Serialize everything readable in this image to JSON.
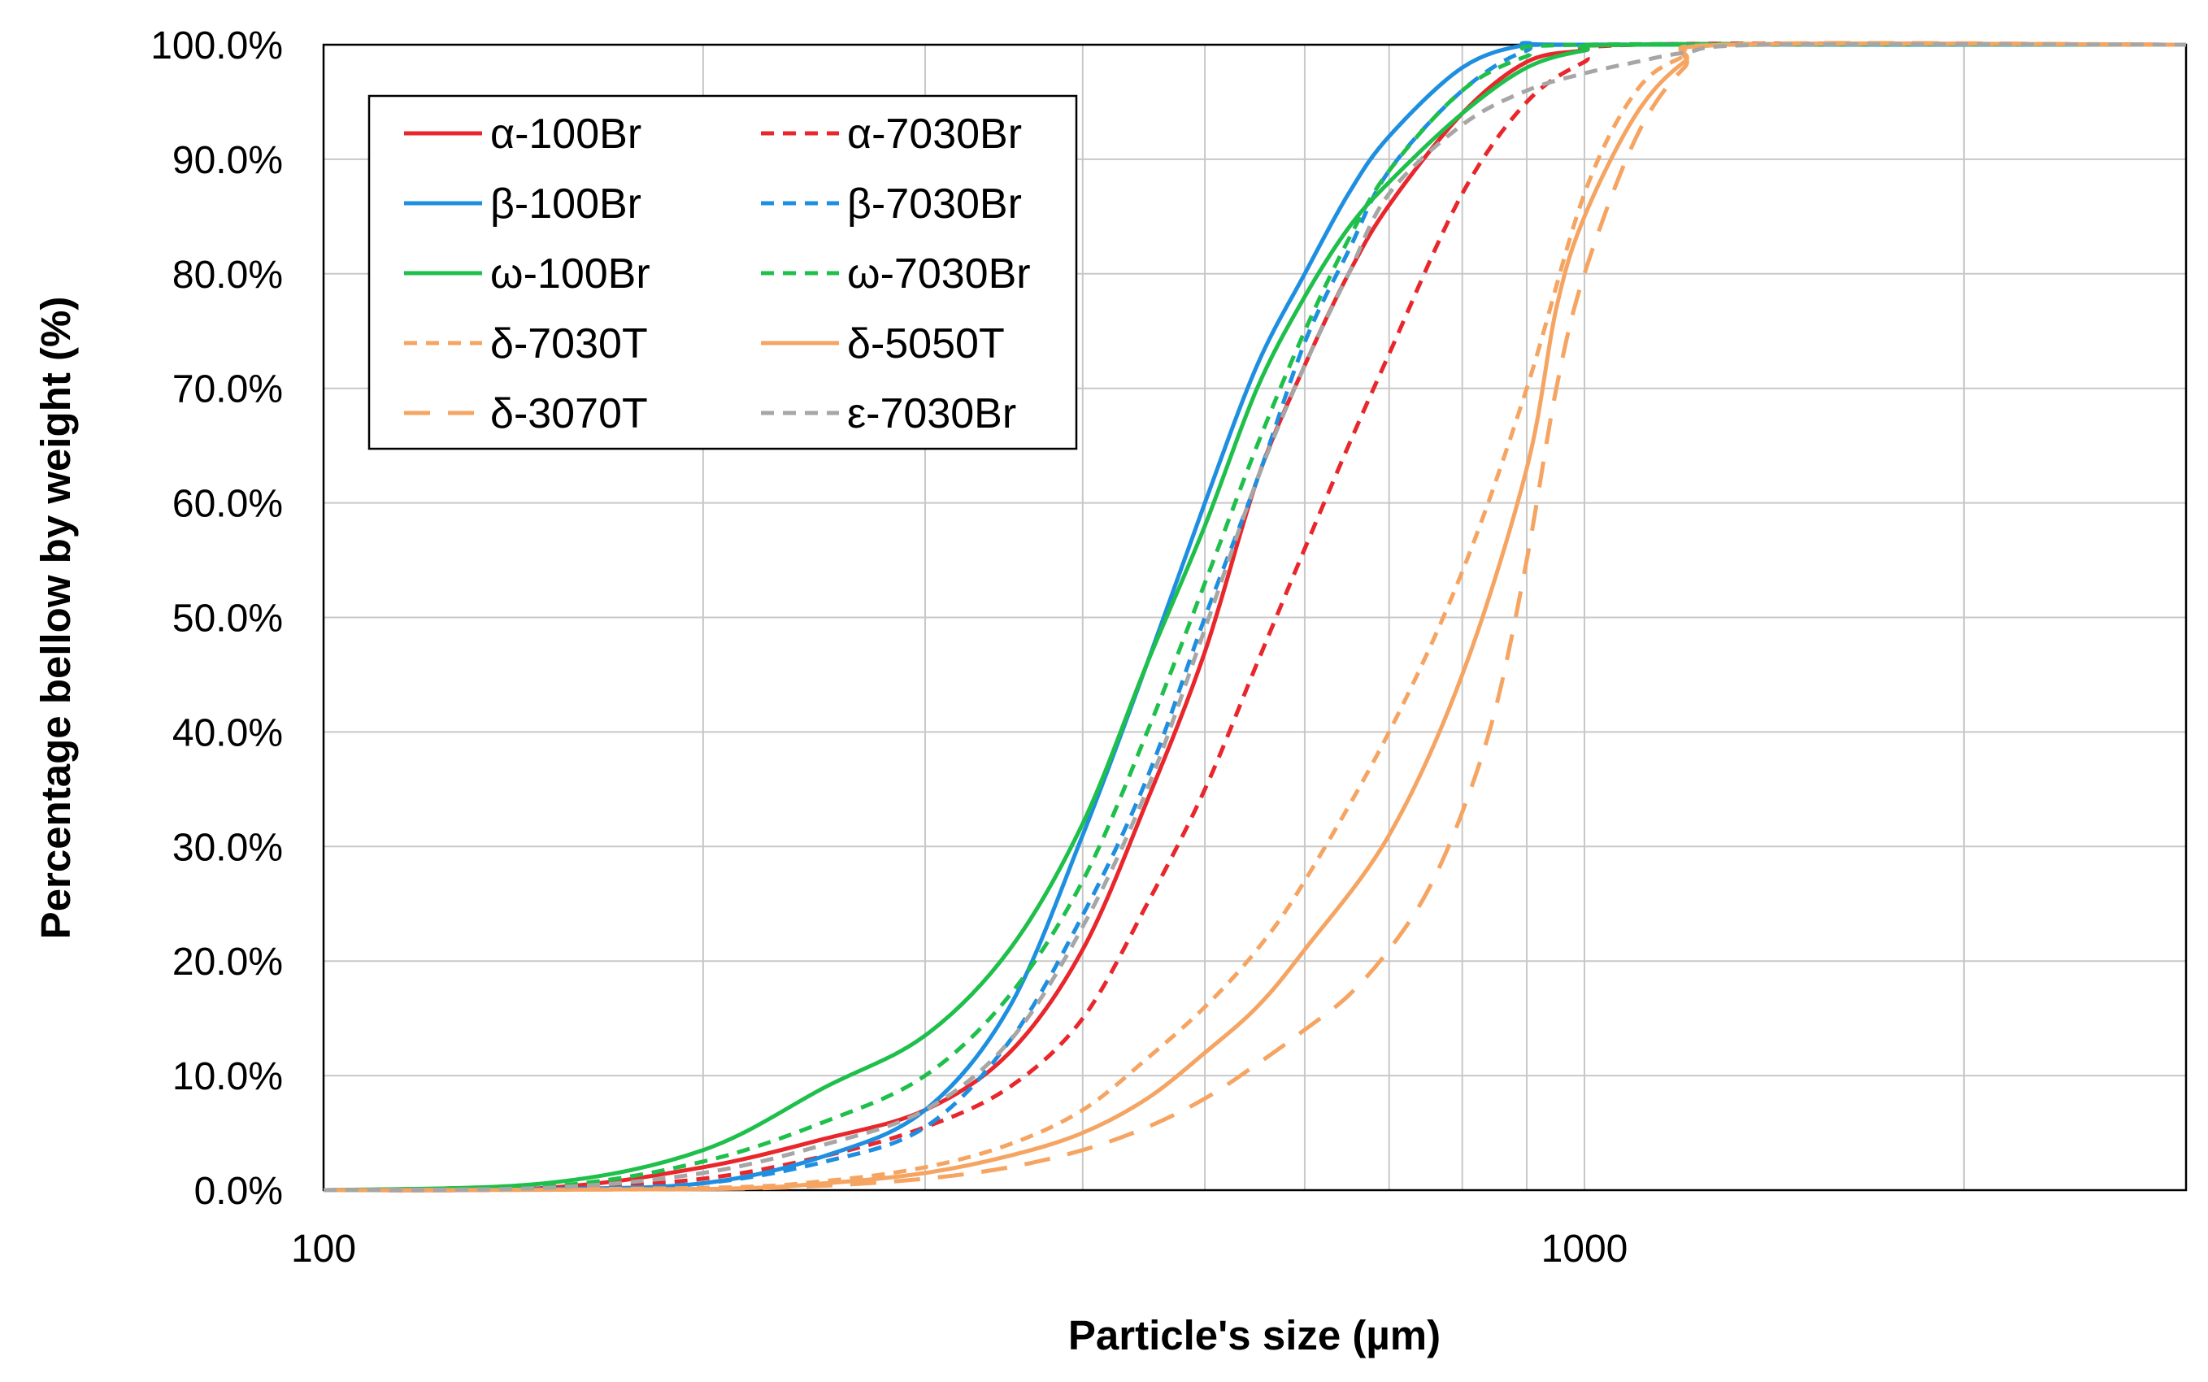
{
  "chart_data": {
    "type": "line",
    "title": "",
    "xlabel": "Particle's size (µm)",
    "ylabel": "Percentage bellow by weight (%)",
    "x_scale": "log",
    "xlim": [
      100,
      3000
    ],
    "ylim": [
      0,
      100
    ],
    "x_ticks": [
      {
        "value": 100,
        "label": "100"
      },
      {
        "value": 1000,
        "label": "1000"
      }
    ],
    "y_ticks": [
      {
        "value": 0,
        "label": "0.0%"
      },
      {
        "value": 10,
        "label": "10.0%"
      },
      {
        "value": 20,
        "label": "20.0%"
      },
      {
        "value": 30,
        "label": "30.0%"
      },
      {
        "value": 40,
        "label": "40.0%"
      },
      {
        "value": 50,
        "label": "50.0%"
      },
      {
        "value": 60,
        "label": "60.0%"
      },
      {
        "value": 70,
        "label": "70.0%"
      },
      {
        "value": 80,
        "label": "80.0%"
      },
      {
        "value": 90,
        "label": "90.0%"
      },
      {
        "value": 100,
        "label": "100.0%"
      }
    ],
    "grid": true,
    "legend_position": "top-left",
    "series": [
      {
        "name": "α-100Br",
        "color": "#e8262b",
        "dash": "solid",
        "x": [
          100,
          150,
          200,
          250,
          300,
          350,
          400,
          450,
          500,
          550,
          600,
          650,
          700,
          800,
          900,
          1000,
          1100,
          3000
        ],
        "y": [
          0,
          0.2,
          2.0,
          4.5,
          7.0,
          12.0,
          21.0,
          34.0,
          47.0,
          62.0,
          72.0,
          80.0,
          86.0,
          94.0,
          98.5,
          99.5,
          100,
          100
        ]
      },
      {
        "name": "α-7030Br",
        "color": "#e8262b",
        "dash": "dash",
        "x": [
          100,
          150,
          200,
          250,
          300,
          350,
          400,
          450,
          500,
          550,
          600,
          650,
          700,
          800,
          900,
          1000,
          1100,
          3000
        ],
        "y": [
          0,
          0.1,
          1.0,
          3.0,
          5.5,
          9.0,
          15.0,
          25.0,
          35.0,
          46.0,
          56.0,
          65.0,
          73.0,
          87.0,
          95.0,
          98.5,
          100,
          100
        ]
      },
      {
        "name": "β-100Br",
        "color": "#1e8fe0",
        "dash": "solid",
        "x": [
          100,
          150,
          200,
          250,
          300,
          350,
          400,
          450,
          500,
          550,
          600,
          650,
          700,
          800,
          900,
          1000,
          3000
        ],
        "y": [
          0,
          0.1,
          0.6,
          3.0,
          7.0,
          16.0,
          31.0,
          46.0,
          60.0,
          72.0,
          80.0,
          87.0,
          92.0,
          98.0,
          100,
          100,
          100
        ]
      },
      {
        "name": "β-7030Br",
        "color": "#1e8fe0",
        "dash": "dash",
        "x": [
          100,
          150,
          200,
          250,
          300,
          350,
          400,
          450,
          500,
          550,
          600,
          650,
          700,
          800,
          900,
          1000,
          3000
        ],
        "y": [
          0,
          0.1,
          0.6,
          2.5,
          5.5,
          13.0,
          24.0,
          36.0,
          50.0,
          62.0,
          74.0,
          82.0,
          89.0,
          96.0,
          99.5,
          100,
          100
        ]
      },
      {
        "name": "ω-100Br",
        "color": "#1fbf4b",
        "dash": "solid",
        "x": [
          100,
          150,
          200,
          250,
          300,
          350,
          400,
          450,
          500,
          550,
          600,
          650,
          700,
          800,
          900,
          1000,
          1100,
          3000
        ],
        "y": [
          0,
          0.6,
          3.5,
          9.0,
          13.5,
          21.0,
          32.0,
          46.0,
          58.0,
          70.0,
          78.0,
          84.0,
          88.0,
          94.0,
          98.0,
          99.5,
          100,
          100
        ]
      },
      {
        "name": "ω-7030Br",
        "color": "#1fbf4b",
        "dash": "dash",
        "x": [
          100,
          150,
          200,
          250,
          300,
          350,
          400,
          450,
          500,
          550,
          600,
          650,
          700,
          800,
          900,
          1000,
          3000
        ],
        "y": [
          0,
          0.3,
          2.5,
          6.0,
          10.0,
          17.0,
          27.0,
          40.0,
          53.0,
          65.0,
          75.0,
          83.0,
          89.0,
          96.0,
          99.0,
          100,
          100
        ]
      },
      {
        "name": "δ-7030T",
        "color": "#f5a462",
        "dash": "dash",
        "x": [
          100,
          200,
          250,
          300,
          350,
          400,
          450,
          500,
          550,
          600,
          700,
          800,
          900,
          1000,
          1100,
          1200,
          1300,
          3000
        ],
        "y": [
          0,
          0.2,
          0.8,
          2.0,
          4.0,
          7.0,
          11.5,
          16.0,
          21.0,
          27.0,
          40.0,
          54.0,
          70.0,
          87.0,
          96.0,
          99.0,
          100,
          100
        ]
      },
      {
        "name": "δ-5050T",
        "color": "#f5a462",
        "dash": "solid",
        "x": [
          100,
          200,
          250,
          300,
          350,
          400,
          450,
          500,
          550,
          600,
          700,
          800,
          900,
          950,
          1000,
          1100,
          1200,
          1300,
          3000
        ],
        "y": [
          0,
          0.1,
          0.6,
          1.5,
          3.0,
          5.0,
          8.0,
          12.0,
          16.0,
          21.0,
          31.0,
          45.0,
          63.0,
          77.0,
          85.0,
          94.0,
          98.5,
          100,
          100
        ]
      },
      {
        "name": "δ-3070T",
        "color": "#f5a462",
        "dash": "dashlong",
        "x": [
          100,
          200,
          250,
          300,
          350,
          400,
          450,
          500,
          550,
          600,
          650,
          700,
          750,
          800,
          850,
          900,
          950,
          1000,
          1100,
          1200,
          1300,
          3000
        ],
        "y": [
          0,
          0.1,
          0.4,
          1.0,
          2.0,
          3.5,
          5.5,
          8.0,
          11.0,
          14.0,
          17.0,
          21.0,
          26.0,
          33.0,
          42.0,
          55.0,
          70.0,
          80.0,
          92.0,
          98.0,
          100,
          100
        ]
      },
      {
        "name": "ε-7030Br",
        "color": "#a6a6a6",
        "dash": "dash",
        "x": [
          100,
          150,
          200,
          250,
          300,
          350,
          400,
          450,
          500,
          550,
          600,
          650,
          700,
          800,
          900,
          1000,
          1100,
          1200,
          1400,
          3000
        ],
        "y": [
          0,
          0.2,
          1.5,
          4.0,
          7.0,
          13.0,
          23.0,
          35.0,
          49.0,
          62.0,
          72.0,
          80.0,
          87.0,
          93.0,
          96.0,
          97.5,
          98.5,
          99.3,
          100,
          100
        ]
      }
    ]
  }
}
